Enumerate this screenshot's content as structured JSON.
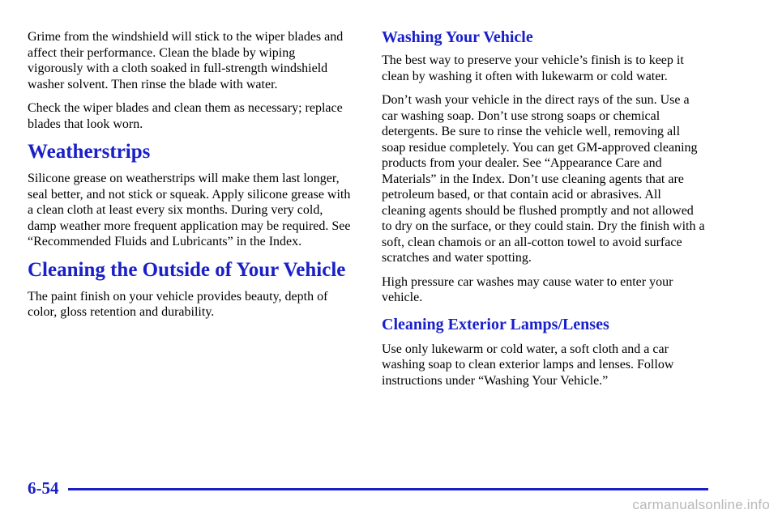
{
  "left": {
    "para_wiper": "Grime from the windshield will stick to the wiper blades and affect their performance. Clean the blade by wiping vigorously with a cloth soaked in full-strength windshield washer solvent. Then rinse the blade with water.",
    "para_check": "Check the wiper blades and clean them as necessary; replace blades that look worn.",
    "heading_weatherstrips": "Weatherstrips",
    "para_weatherstrips": "Silicone grease on weatherstrips will make them last longer, seal better, and not stick or squeak. Apply silicone grease with a clean cloth at least every six months. During very cold, damp weather more frequent application may be required. See “Recommended Fluids and Lubricants” in the Index.",
    "heading_cleaning_outside": "Cleaning the Outside of Your Vehicle",
    "para_cleaning_outside": "The paint finish on your vehicle provides beauty, depth of color, gloss retention and durability."
  },
  "right": {
    "heading_washing": "Washing Your Vehicle",
    "para_washing_1": "The best way to preserve your vehicle’s finish is to keep it clean by washing it often with lukewarm or cold water.",
    "para_washing_2": "Don’t wash your vehicle in the direct rays of the sun. Use a car washing soap. Don’t use strong soaps or chemical detergents. Be sure to rinse the vehicle well, removing all soap residue completely. You can get GM-approved cleaning products from your dealer. See “Appearance Care and Materials” in the Index. Don’t use cleaning agents that are petroleum based, or that contain acid or abrasives. All cleaning agents should be flushed promptly and not allowed to dry on the surface, or they could stain. Dry the finish with a soft, clean chamois or an all-cotton towel to avoid surface scratches and water spotting.",
    "para_washing_3": "High pressure car washes may cause water to enter your vehicle.",
    "heading_lamps": "Cleaning Exterior Lamps/Lenses",
    "para_lamps": "Use only lukewarm or cold water, a soft cloth and a car washing soap to clean exterior lamps and lenses. Follow instructions under “Washing Your Vehicle.”"
  },
  "footer": {
    "page_number": "6-54",
    "watermark": "carmanualsonline.info"
  },
  "colors": {
    "heading": "#1a20c8",
    "text": "#000000",
    "watermark": "#b8b8b8"
  }
}
